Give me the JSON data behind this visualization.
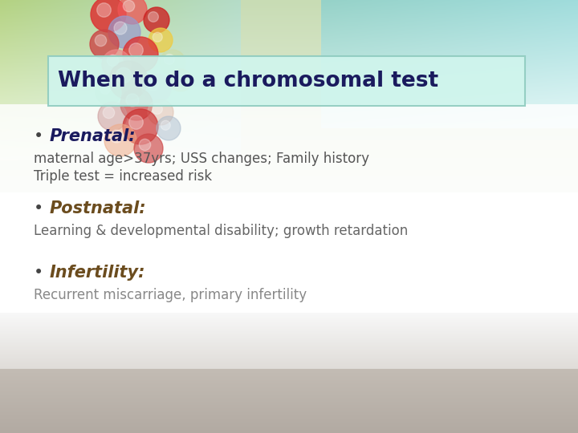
{
  "title": "When to do a chromosomal test",
  "title_color": "#1a1a5e",
  "title_bg_color": "#d0f5ed",
  "title_border_color": "#90ccc0",
  "bullet1_label": "Prenatal:",
  "bullet1_label_color": "#1a1a5e",
  "bullet1_text1": "maternal age>37yrs; USS changes; Family history",
  "bullet1_text2": "Triple test = increased risk",
  "bullet1_text_color": "#555555",
  "bullet2_label": "Postnatal:",
  "bullet2_label_color": "#6b4c1e",
  "bullet2_text1": "Learning & developmental disability; growth retardation",
  "bullet2_text_color": "#666666",
  "bullet3_label": "Infertility:",
  "bullet3_label_color": "#6b4c1e",
  "bullet3_text1": "Recurrent miscarriage, primary infertility",
  "bullet3_text_color": "#888888",
  "bullet_dot_color": "#444444",
  "fig_width": 7.2,
  "fig_height": 5.4,
  "dpi": 100
}
